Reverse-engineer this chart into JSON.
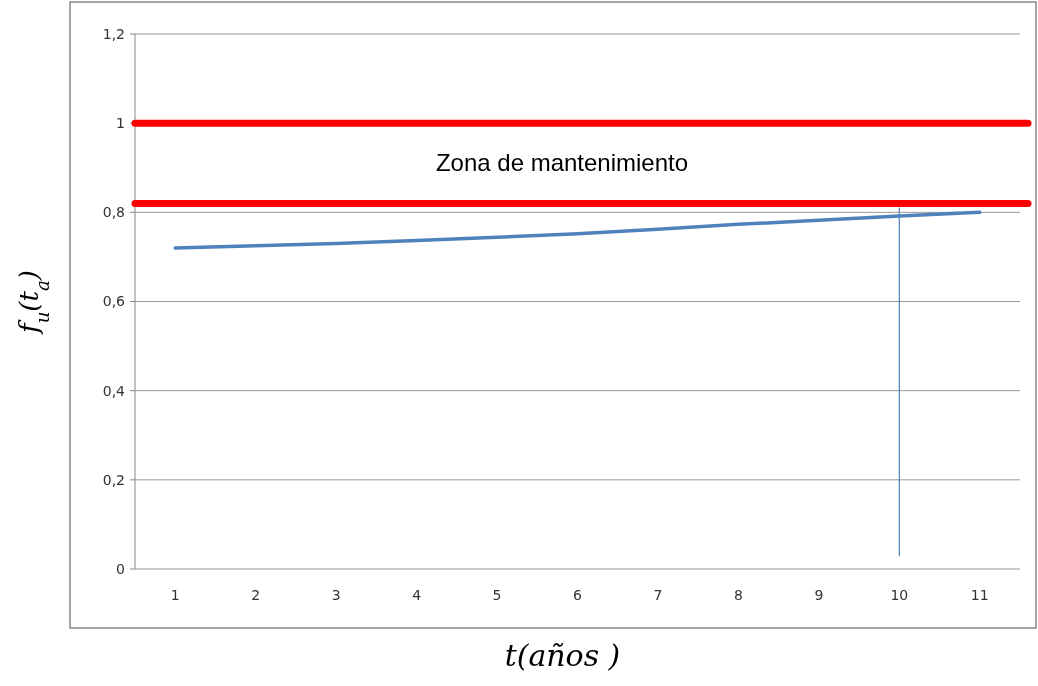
{
  "chart_data": {
    "type": "line",
    "categories": [
      "1",
      "2",
      "3",
      "4",
      "5",
      "6",
      "7",
      "8",
      "9",
      "10",
      "11"
    ],
    "series": [
      {
        "color": "#4f81bd",
        "values": [
          0.72,
          0.725,
          0.73,
          0.737,
          0.744,
          0.752,
          0.762,
          0.773,
          0.782,
          0.792,
          0.8
        ]
      },
      {
        "color": "#4f81bd",
        "x": [
          "10",
          "10"
        ],
        "values": [
          0.03,
          0.81
        ],
        "line_style": "solid"
      }
    ],
    "ylim": [
      0,
      1.2
    ],
    "yticks": [
      {
        "value": 0,
        "label": "0"
      },
      {
        "value": 0.2,
        "label": "0,2"
      },
      {
        "value": 0.4,
        "label": "0,4"
      },
      {
        "value": 0.6,
        "label": "0,6"
      },
      {
        "value": 0.8,
        "label": "0,8"
      },
      {
        "value": 1,
        "label": "1"
      },
      {
        "value": 1.2,
        "label": "1,2"
      }
    ],
    "grid": "y",
    "marker": "none",
    "xlabel": "t(años )",
    "ylabel": "f$_{u}$(t$_{a}$)",
    "ref_lines": [
      {
        "axis": "y",
        "value": 1,
        "color": "#ff0000"
      },
      {
        "axis": "y",
        "value": 0.82,
        "color": "#ff0000"
      }
    ],
    "annotations": [
      "Zona de mantenimiento"
    ]
  }
}
